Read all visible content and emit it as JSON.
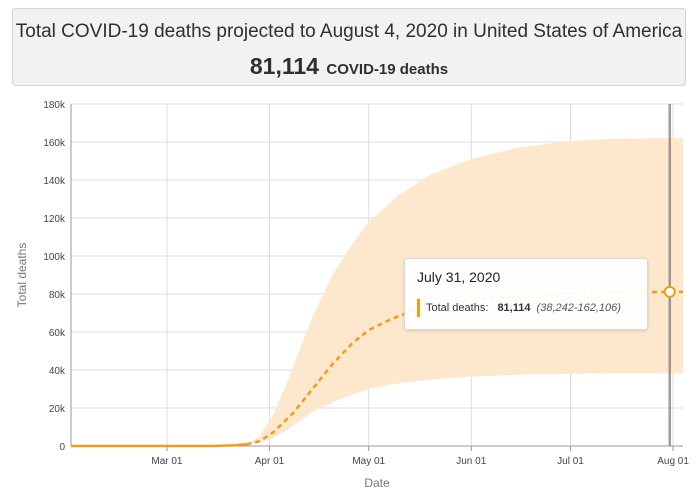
{
  "header": {
    "title": "Total COVID-19 deaths projected to August 4, 2020 in United States of America",
    "value": "81,114",
    "value_unit": "COVID-19 deaths"
  },
  "tooltip": {
    "date": "July 31, 2020",
    "label": "Total deaths:",
    "value": "81,114",
    "range": "(38,242-162,106)"
  },
  "colors": {
    "line": "#f39c12",
    "band": "#fde8cd",
    "grid": "#dcdcdc"
  },
  "chart_data": {
    "type": "line",
    "title": "",
    "xlabel": "Date",
    "ylabel": "Total deaths",
    "x_ticks": [
      "Mar 01",
      "Apr 01",
      "May 01",
      "Jun 01",
      "Jul 01",
      "Aug 01"
    ],
    "x_tick_dates": [
      "2020-03-01",
      "2020-04-01",
      "2020-05-01",
      "2020-06-01",
      "2020-07-01",
      "2020-08-01"
    ],
    "x_range": [
      "2020-02-01",
      "2020-08-04"
    ],
    "y_ticks": [
      "0",
      "20k",
      "40k",
      "60k",
      "80k",
      "100k",
      "120k",
      "140k",
      "160k",
      "180k"
    ],
    "y_tick_values": [
      0,
      20000,
      40000,
      60000,
      80000,
      100000,
      120000,
      140000,
      160000,
      180000
    ],
    "ylim": [
      0,
      180000
    ],
    "grid": true,
    "series": [
      {
        "style": "solid",
        "points": [
          {
            "x": "2020-02-01",
            "y": 0
          },
          {
            "x": "2020-02-15",
            "y": 0
          },
          {
            "x": "2020-03-01",
            "y": 0
          },
          {
            "x": "2020-03-15",
            "y": 0
          },
          {
            "x": "2020-03-22",
            "y": 400
          },
          {
            "x": "2020-03-25",
            "y": 900
          }
        ]
      },
      {
        "style": "dashed",
        "points": [
          {
            "x": "2020-03-25",
            "y": 900
          },
          {
            "x": "2020-03-29",
            "y": 2500
          },
          {
            "x": "2020-04-02",
            "y": 7000
          },
          {
            "x": "2020-04-08",
            "y": 17000
          },
          {
            "x": "2020-04-14",
            "y": 30000
          },
          {
            "x": "2020-04-20",
            "y": 43000
          },
          {
            "x": "2020-04-26",
            "y": 54000
          },
          {
            "x": "2020-05-01",
            "y": 61000
          },
          {
            "x": "2020-05-08",
            "y": 67000
          },
          {
            "x": "2020-05-15",
            "y": 71500
          },
          {
            "x": "2020-05-22",
            "y": 74500
          },
          {
            "x": "2020-06-01",
            "y": 77000
          },
          {
            "x": "2020-06-15",
            "y": 79000
          },
          {
            "x": "2020-07-01",
            "y": 80300
          },
          {
            "x": "2020-07-15",
            "y": 80800
          },
          {
            "x": "2020-07-31",
            "y": 81114
          },
          {
            "x": "2020-08-04",
            "y": 81150
          }
        ]
      }
    ],
    "uncertainty_band": [
      {
        "x": "2020-03-25",
        "lower": 800,
        "upper": 1000
      },
      {
        "x": "2020-03-29",
        "lower": 1800,
        "upper": 5000
      },
      {
        "x": "2020-04-02",
        "lower": 4000,
        "upper": 16000
      },
      {
        "x": "2020-04-06",
        "lower": 8000,
        "upper": 32000
      },
      {
        "x": "2020-04-10",
        "lower": 13000,
        "upper": 50000
      },
      {
        "x": "2020-04-14",
        "lower": 18000,
        "upper": 68000
      },
      {
        "x": "2020-04-20",
        "lower": 23000,
        "upper": 90000
      },
      {
        "x": "2020-04-26",
        "lower": 27000,
        "upper": 106000
      },
      {
        "x": "2020-05-01",
        "lower": 30000,
        "upper": 118000
      },
      {
        "x": "2020-05-10",
        "lower": 33000,
        "upper": 132000
      },
      {
        "x": "2020-05-20",
        "lower": 35000,
        "upper": 143000
      },
      {
        "x": "2020-06-01",
        "lower": 36500,
        "upper": 151000
      },
      {
        "x": "2020-06-15",
        "lower": 37500,
        "upper": 157000
      },
      {
        "x": "2020-07-01",
        "lower": 38000,
        "upper": 160500
      },
      {
        "x": "2020-07-15",
        "lower": 38200,
        "upper": 161800
      },
      {
        "x": "2020-07-31",
        "lower": 38242,
        "upper": 162106
      },
      {
        "x": "2020-08-04",
        "lower": 38250,
        "upper": 162150
      }
    ],
    "highlight": {
      "x": "2020-07-31",
      "y": 81114
    }
  }
}
